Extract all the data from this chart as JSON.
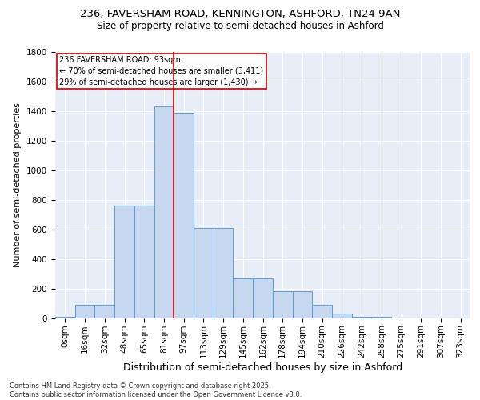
{
  "title_line1": "236, FAVERSHAM ROAD, KENNINGTON, ASHFORD, TN24 9AN",
  "title_line2": "Size of property relative to semi-detached houses in Ashford",
  "xlabel": "Distribution of semi-detached houses by size in Ashford",
  "ylabel": "Number of semi-detached properties",
  "footnote": "Contains HM Land Registry data © Crown copyright and database right 2025.\nContains public sector information licensed under the Open Government Licence v3.0.",
  "categories": [
    "0sqm",
    "16sqm",
    "32sqm",
    "48sqm",
    "65sqm",
    "81sqm",
    "97sqm",
    "113sqm",
    "129sqm",
    "145sqm",
    "162sqm",
    "178sqm",
    "194sqm",
    "210sqm",
    "226sqm",
    "242sqm",
    "258sqm",
    "275sqm",
    "291sqm",
    "307sqm",
    "323sqm"
  ],
  "values": [
    10,
    90,
    90,
    760,
    760,
    1430,
    1390,
    610,
    610,
    270,
    270,
    180,
    180,
    90,
    30,
    10,
    10,
    0,
    0,
    0,
    0
  ],
  "bar_color": "#c5d8f0",
  "bar_edge_color": "#5b9bd5",
  "vline_position": 6.0,
  "vline_color": "#cc0000",
  "annotation_text": "236 FAVERSHAM ROAD: 93sqm\n← 70% of semi-detached houses are smaller (3,411)\n29% of semi-detached houses are larger (1,430) →",
  "annotation_box_edgecolor": "#cc0000",
  "ylim": [
    0,
    1800
  ],
  "yticks": [
    0,
    200,
    400,
    600,
    800,
    1000,
    1200,
    1400,
    1600,
    1800
  ],
  "bg_color": "#e8eef8",
  "grid_color": "#ffffff",
  "title_fontsize": 9.5,
  "subtitle_fontsize": 8.5,
  "ylabel_fontsize": 8,
  "xlabel_fontsize": 9,
  "tick_fontsize": 7.5,
  "annotation_fontsize": 7,
  "footnote_fontsize": 6
}
